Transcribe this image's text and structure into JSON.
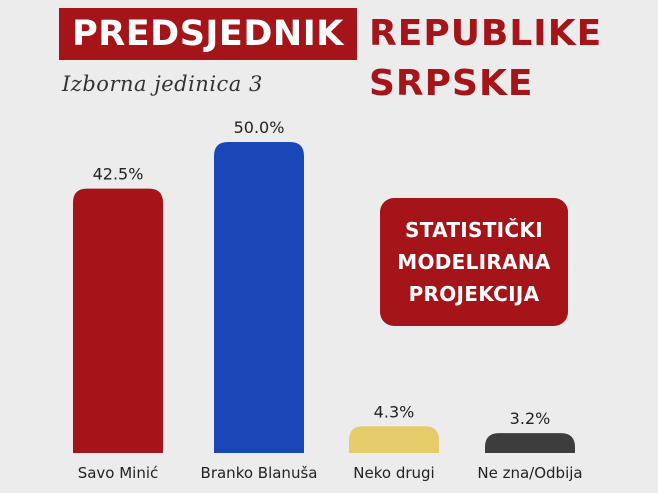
{
  "header": {
    "title_highlight": "PREDSJEDNIK",
    "title_line1": "REPUBLIKE",
    "title_line2": "SRPSKE",
    "subtitle": "Izborna jedinica 3"
  },
  "badge": {
    "lines": [
      "STATISTIČKI",
      "MODELIRANA",
      "PROJEKCIJA"
    ]
  },
  "colors": {
    "accent": "#a51419",
    "bars": [
      "#a51419",
      "#1a47b8",
      "#e6cb6a",
      "#3d3d3d"
    ]
  },
  "chart_data": {
    "type": "bar",
    "categories": [
      "Savo Minić",
      "Branko Blanuša",
      "Neko drugi",
      "Ne zna/Odbija"
    ],
    "values": [
      42.5,
      50.0,
      4.3,
      3.2
    ],
    "value_labels": [
      "42.5%",
      "50.0%",
      "4.3%",
      "3.2%"
    ],
    "ylim": [
      0,
      50
    ],
    "grid": false,
    "legend": "none"
  }
}
